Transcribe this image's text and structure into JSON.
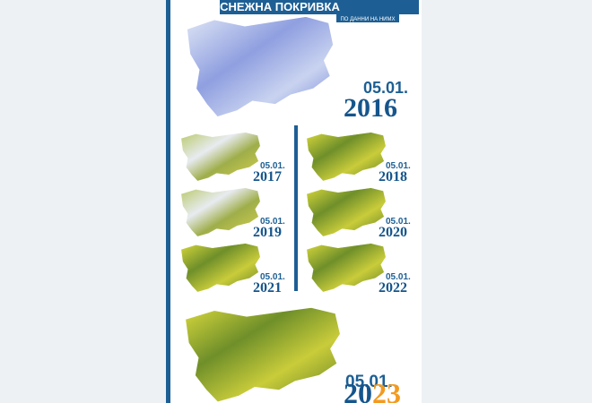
{
  "header": {
    "title": "СНЕЖНА ПОКРИВКА",
    "subtitle": "ПО ДАННИ НА НИМХ"
  },
  "panels": [
    {
      "date": "05.01.",
      "year": "2016"
    },
    {
      "date": "05.01.",
      "year": "2017"
    },
    {
      "date": "05.01.",
      "year": "2018"
    },
    {
      "date": "05.01.",
      "year": "2019"
    },
    {
      "date": "05.01.",
      "year": "2020"
    },
    {
      "date": "05.01.",
      "year": "2021"
    },
    {
      "date": "05.01.",
      "year": "2022"
    }
  ],
  "latest": {
    "date": "05.01.",
    "year_parts": [
      "20",
      "23"
    ]
  }
}
